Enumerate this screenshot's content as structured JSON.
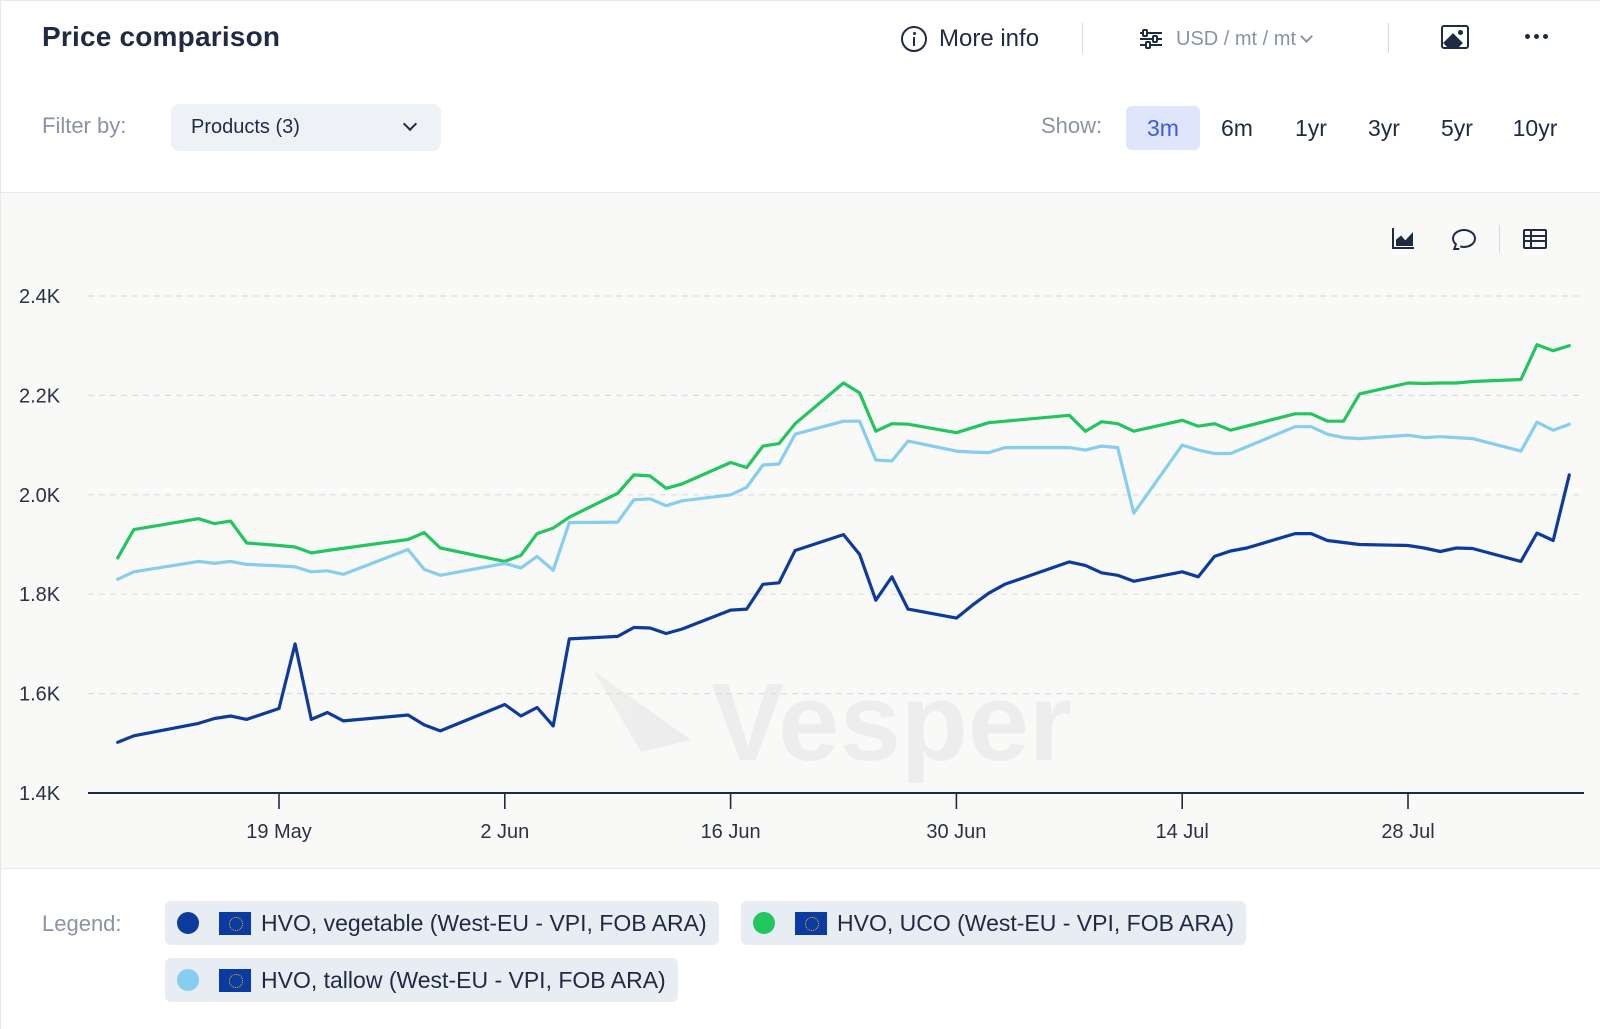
{
  "header": {
    "title": "Price comparison",
    "more_info_label": "More info",
    "units_label": "USD / mt / mt"
  },
  "filter": {
    "label": "Filter by:",
    "products_value": "Products (3)"
  },
  "show": {
    "label": "Show:",
    "periods": [
      "3m",
      "6m",
      "1yr",
      "3yr",
      "5yr",
      "10yr"
    ],
    "active": "3m"
  },
  "legend": {
    "label": "Legend:",
    "items": [
      "HVO, vegetable (West-EU - VPI, FOB ARA)",
      "HVO, UCO (West-EU - VPI, FOB ARA)",
      "HVO, tallow (West-EU - VPI, FOB ARA)"
    ]
  },
  "colors": {
    "vegetable": "#0d3b9c",
    "uco": "#22c55e",
    "tallow": "#87cdf0",
    "grid": "#dcdde0",
    "axis": "#1f2a44"
  },
  "chart_data": {
    "type": "line",
    "x_domain": [
      "2025-05-09",
      "2025-08-06"
    ],
    "x_ticks": [
      {
        "date": "2025-05-19",
        "label": "19 May"
      },
      {
        "date": "2025-06-02",
        "label": "2 Jun"
      },
      {
        "date": "2025-06-16",
        "label": "16 Jun"
      },
      {
        "date": "2025-06-30",
        "label": "30 Jun"
      },
      {
        "date": "2025-07-14",
        "label": "14 Jul"
      },
      {
        "date": "2025-07-28",
        "label": "28 Jul"
      }
    ],
    "y_ticks": [
      {
        "value": 1400,
        "label": "1.4K"
      },
      {
        "value": 1600,
        "label": "1.6K"
      },
      {
        "value": 1800,
        "label": "1.8K"
      },
      {
        "value": 2000,
        "label": "2.0K"
      },
      {
        "value": 2200,
        "label": "2.2K"
      },
      {
        "value": 2400,
        "label": "2.4K"
      }
    ],
    "ylim": [
      1400,
      2400
    ],
    "grid": true,
    "legend_position": "bottom",
    "series": [
      {
        "name": "HVO, vegetable (West-EU - VPI, FOB ARA)",
        "key": "vegetable",
        "points": [
          [
            "2025-05-09",
            1502
          ],
          [
            "2025-05-10",
            1515
          ],
          [
            "2025-05-14",
            1540
          ],
          [
            "2025-05-15",
            1550
          ],
          [
            "2025-05-16",
            1555
          ],
          [
            "2025-05-17",
            1548
          ],
          [
            "2025-05-19",
            1570
          ],
          [
            "2025-05-20",
            1700
          ],
          [
            "2025-05-21",
            1548
          ],
          [
            "2025-05-22",
            1562
          ],
          [
            "2025-05-23",
            1545
          ],
          [
            "2025-05-27",
            1557
          ],
          [
            "2025-05-28",
            1537
          ],
          [
            "2025-05-29",
            1525
          ],
          [
            "2025-06-02",
            1578
          ],
          [
            "2025-06-03",
            1555
          ],
          [
            "2025-06-04",
            1572
          ],
          [
            "2025-06-05",
            1535
          ],
          [
            "2025-06-06",
            1710
          ],
          [
            "2025-06-09",
            1715
          ],
          [
            "2025-06-10",
            1733
          ],
          [
            "2025-06-11",
            1732
          ],
          [
            "2025-06-12",
            1721
          ],
          [
            "2025-06-13",
            1730
          ],
          [
            "2025-06-16",
            1768
          ],
          [
            "2025-06-17",
            1770
          ],
          [
            "2025-06-18",
            1820
          ],
          [
            "2025-06-19",
            1823
          ],
          [
            "2025-06-20",
            1888
          ],
          [
            "2025-06-23",
            1920
          ],
          [
            "2025-06-24",
            1880
          ],
          [
            "2025-06-25",
            1788
          ],
          [
            "2025-06-26",
            1835
          ],
          [
            "2025-06-27",
            1770
          ],
          [
            "2025-06-30",
            1752
          ],
          [
            "2025-07-01",
            1778
          ],
          [
            "2025-07-02",
            1802
          ],
          [
            "2025-07-03",
            1820
          ],
          [
            "2025-07-07",
            1865
          ],
          [
            "2025-07-08",
            1858
          ],
          [
            "2025-07-09",
            1843
          ],
          [
            "2025-07-10",
            1838
          ],
          [
            "2025-07-11",
            1826
          ],
          [
            "2025-07-14",
            1845
          ],
          [
            "2025-07-15",
            1835
          ],
          [
            "2025-07-16",
            1876
          ],
          [
            "2025-07-17",
            1887
          ],
          [
            "2025-07-18",
            1893
          ],
          [
            "2025-07-21",
            1922
          ],
          [
            "2025-07-22",
            1922
          ],
          [
            "2025-07-23",
            1908
          ],
          [
            "2025-07-24",
            1904
          ],
          [
            "2025-07-25",
            1900
          ],
          [
            "2025-07-28",
            1898
          ],
          [
            "2025-07-29",
            1893
          ],
          [
            "2025-07-30",
            1886
          ],
          [
            "2025-07-31",
            1893
          ],
          [
            "2025-08-01",
            1892
          ],
          [
            "2025-08-04",
            1866
          ],
          [
            "2025-08-05",
            1923
          ],
          [
            "2025-08-06",
            1908
          ],
          [
            "2025-08-07",
            2040
          ]
        ]
      },
      {
        "name": "HVO, UCO (West-EU - VPI, FOB ARA)",
        "key": "uco",
        "points": [
          [
            "2025-05-09",
            1873
          ],
          [
            "2025-05-10",
            1930
          ],
          [
            "2025-05-14",
            1952
          ],
          [
            "2025-05-15",
            1942
          ],
          [
            "2025-05-16",
            1947
          ],
          [
            "2025-05-17",
            1903
          ],
          [
            "2025-05-19",
            1898
          ],
          [
            "2025-05-20",
            1895
          ],
          [
            "2025-05-21",
            1883
          ],
          [
            "2025-05-22",
            1888
          ],
          [
            "2025-05-27",
            1910
          ],
          [
            "2025-05-28",
            1924
          ],
          [
            "2025-05-29",
            1893
          ],
          [
            "2025-06-02",
            1866
          ],
          [
            "2025-06-03",
            1878
          ],
          [
            "2025-06-04",
            1922
          ],
          [
            "2025-06-05",
            1933
          ],
          [
            "2025-06-06",
            1955
          ],
          [
            "2025-06-09",
            2003
          ],
          [
            "2025-06-10",
            2040
          ],
          [
            "2025-06-11",
            2038
          ],
          [
            "2025-06-12",
            2013
          ],
          [
            "2025-06-13",
            2022
          ],
          [
            "2025-06-16",
            2065
          ],
          [
            "2025-06-17",
            2055
          ],
          [
            "2025-06-18",
            2098
          ],
          [
            "2025-06-19",
            2103
          ],
          [
            "2025-06-20",
            2143
          ],
          [
            "2025-06-23",
            2225
          ],
          [
            "2025-06-24",
            2205
          ],
          [
            "2025-06-25",
            2128
          ],
          [
            "2025-06-26",
            2143
          ],
          [
            "2025-06-27",
            2142
          ],
          [
            "2025-06-30",
            2125
          ],
          [
            "2025-07-01",
            2135
          ],
          [
            "2025-07-02",
            2145
          ],
          [
            "2025-07-07",
            2160
          ],
          [
            "2025-07-08",
            2128
          ],
          [
            "2025-07-09",
            2147
          ],
          [
            "2025-07-10",
            2143
          ],
          [
            "2025-07-11",
            2128
          ],
          [
            "2025-07-14",
            2150
          ],
          [
            "2025-07-15",
            2138
          ],
          [
            "2025-07-16",
            2143
          ],
          [
            "2025-07-17",
            2130
          ],
          [
            "2025-07-21",
            2163
          ],
          [
            "2025-07-22",
            2163
          ],
          [
            "2025-07-23",
            2148
          ],
          [
            "2025-07-24",
            2148
          ],
          [
            "2025-07-25",
            2203
          ],
          [
            "2025-07-28",
            2225
          ],
          [
            "2025-07-29",
            2224
          ],
          [
            "2025-07-30",
            2225
          ],
          [
            "2025-07-31",
            2225
          ],
          [
            "2025-08-01",
            2228
          ],
          [
            "2025-08-04",
            2232
          ],
          [
            "2025-08-05",
            2302
          ],
          [
            "2025-08-06",
            2290
          ],
          [
            "2025-08-07",
            2300
          ]
        ]
      },
      {
        "name": "HVO, tallow (West-EU - VPI, FOB ARA)",
        "key": "tallow",
        "points": [
          [
            "2025-05-09",
            1830
          ],
          [
            "2025-05-10",
            1845
          ],
          [
            "2025-05-14",
            1866
          ],
          [
            "2025-05-15",
            1862
          ],
          [
            "2025-05-16",
            1866
          ],
          [
            "2025-05-17",
            1860
          ],
          [
            "2025-05-19",
            1857
          ],
          [
            "2025-05-20",
            1855
          ],
          [
            "2025-05-21",
            1845
          ],
          [
            "2025-05-22",
            1847
          ],
          [
            "2025-05-23",
            1840
          ],
          [
            "2025-05-27",
            1890
          ],
          [
            "2025-05-28",
            1850
          ],
          [
            "2025-05-29",
            1838
          ],
          [
            "2025-06-02",
            1862
          ],
          [
            "2025-06-03",
            1853
          ],
          [
            "2025-06-04",
            1876
          ],
          [
            "2025-06-05",
            1848
          ],
          [
            "2025-06-06",
            1944
          ],
          [
            "2025-06-09",
            1945
          ],
          [
            "2025-06-10",
            1990
          ],
          [
            "2025-06-11",
            1992
          ],
          [
            "2025-06-12",
            1978
          ],
          [
            "2025-06-13",
            1988
          ],
          [
            "2025-06-16",
            2000
          ],
          [
            "2025-06-17",
            2015
          ],
          [
            "2025-06-18",
            2060
          ],
          [
            "2025-06-19",
            2062
          ],
          [
            "2025-06-20",
            2122
          ],
          [
            "2025-06-23",
            2148
          ],
          [
            "2025-06-24",
            2148
          ],
          [
            "2025-06-25",
            2070
          ],
          [
            "2025-06-26",
            2068
          ],
          [
            "2025-06-27",
            2108
          ],
          [
            "2025-06-30",
            2088
          ],
          [
            "2025-07-01",
            2086
          ],
          [
            "2025-07-02",
            2085
          ],
          [
            "2025-07-03",
            2095
          ],
          [
            "2025-07-07",
            2095
          ],
          [
            "2025-07-08",
            2090
          ],
          [
            "2025-07-09",
            2098
          ],
          [
            "2025-07-10",
            2095
          ],
          [
            "2025-07-11",
            1963
          ],
          [
            "2025-07-14",
            2100
          ],
          [
            "2025-07-15",
            2090
          ],
          [
            "2025-07-16",
            2083
          ],
          [
            "2025-07-17",
            2083
          ],
          [
            "2025-07-21",
            2137
          ],
          [
            "2025-07-22",
            2137
          ],
          [
            "2025-07-23",
            2122
          ],
          [
            "2025-07-24",
            2115
          ],
          [
            "2025-07-25",
            2113
          ],
          [
            "2025-07-28",
            2120
          ],
          [
            "2025-07-29",
            2115
          ],
          [
            "2025-07-30",
            2117
          ],
          [
            "2025-07-31",
            2115
          ],
          [
            "2025-08-01",
            2113
          ],
          [
            "2025-08-04",
            2088
          ],
          [
            "2025-08-05",
            2146
          ],
          [
            "2025-08-06",
            2130
          ],
          [
            "2025-08-07",
            2142
          ]
        ]
      }
    ]
  }
}
